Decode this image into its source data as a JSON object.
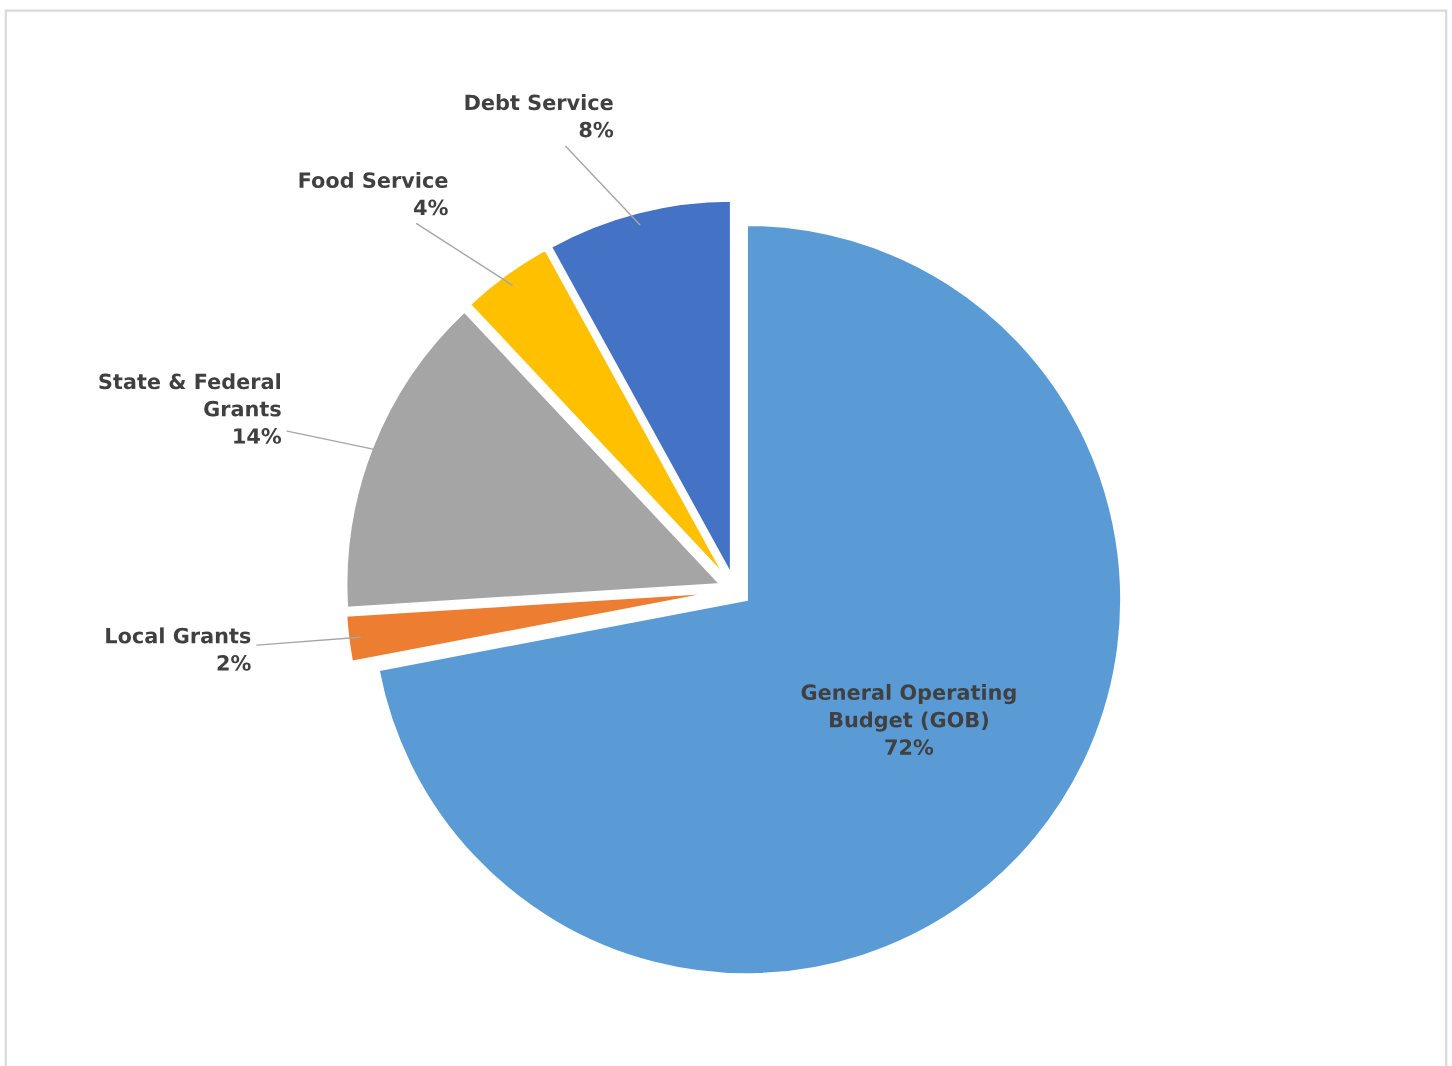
{
  "chart_data": {
    "type": "pie",
    "categories": [
      "General Operating\nBudget (GOB)",
      "Local Grants",
      "State & Federal\nGrants",
      "Food Service",
      "Debt Service"
    ],
    "values": [
      72,
      2,
      14,
      4,
      8
    ],
    "value_labels": [
      "72%",
      "2%",
      "14%",
      "4%",
      "8%"
    ],
    "colors": [
      "#5b9bd5",
      "#ed7d31",
      "#a5a5a5",
      "#ffc000",
      "#4472c4"
    ],
    "legend": false
  }
}
